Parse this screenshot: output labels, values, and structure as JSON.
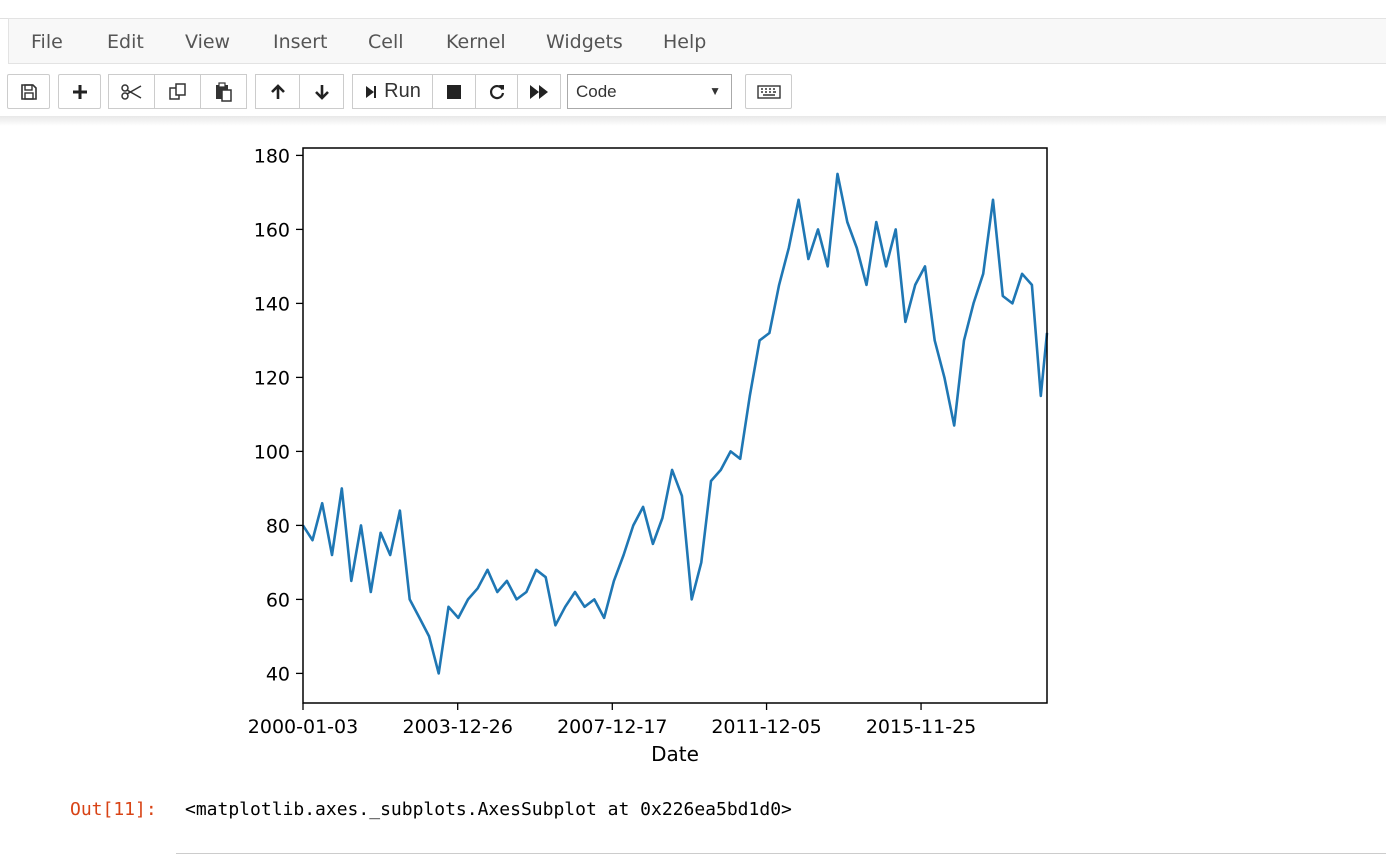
{
  "menu": {
    "items": [
      "File",
      "Edit",
      "View",
      "Insert",
      "Cell",
      "Kernel",
      "Widgets",
      "Help"
    ]
  },
  "toolbar": {
    "icons": [
      "save-icon",
      "plus-icon",
      "cut-icon",
      "copy-icon",
      "paste-icon",
      "arrow-up-icon",
      "arrow-down-icon",
      "run-icon",
      "stop-icon",
      "restart-icon",
      "fast-forward-icon",
      "keyboard-icon"
    ],
    "run_label": "Run",
    "cell_type": "Code"
  },
  "output": {
    "prompt": "Out[11]:",
    "text": "<matplotlib.axes._subplots.AxesSubplot at 0x226ea5bd1d0>"
  },
  "chart_data": {
    "type": "line",
    "title": "",
    "xlabel": "Date",
    "ylabel": "",
    "x_ticks": [
      "2000-01-03",
      "2003-12-26",
      "2007-12-17",
      "2011-12-05",
      "2015-11-25"
    ],
    "y_ticks": [
      40,
      60,
      80,
      100,
      120,
      140,
      160,
      180
    ],
    "xlim": [
      "2000-01-03",
      "2019-02-20"
    ],
    "ylim": [
      32,
      182
    ],
    "grid": false,
    "color": "#1f77b4",
    "series": [
      {
        "x": [
          "2000-01-03",
          "2000-04-01",
          "2000-07-01",
          "2000-10-01",
          "2001-01-01",
          "2001-04-01",
          "2001-07-01",
          "2001-10-01",
          "2002-01-01",
          "2002-04-01",
          "2002-07-01",
          "2002-10-01",
          "2003-01-01",
          "2003-04-01",
          "2003-07-01",
          "2003-10-01",
          "2004-01-01",
          "2004-04-01",
          "2004-07-01",
          "2004-10-01",
          "2005-01-01",
          "2005-04-01",
          "2005-07-01",
          "2005-10-01",
          "2006-01-01",
          "2006-04-01",
          "2006-07-01",
          "2006-10-01",
          "2007-01-01",
          "2007-04-01",
          "2007-07-01",
          "2007-10-01",
          "2008-01-01",
          "2008-04-01",
          "2008-07-01",
          "2008-10-01",
          "2009-01-01",
          "2009-04-01",
          "2009-07-01",
          "2009-10-01",
          "2010-01-01",
          "2010-04-01",
          "2010-07-01",
          "2010-10-01",
          "2011-01-01",
          "2011-04-01",
          "2011-07-01",
          "2011-10-01",
          "2012-01-01",
          "2012-04-01",
          "2012-07-01",
          "2012-10-01",
          "2013-01-01",
          "2013-04-01",
          "2013-07-01",
          "2013-10-01",
          "2014-01-01",
          "2014-04-01",
          "2014-07-01",
          "2014-10-01",
          "2015-01-01",
          "2015-04-01",
          "2015-07-01",
          "2015-10-01",
          "2016-01-01",
          "2016-04-01",
          "2016-07-01",
          "2016-10-01",
          "2017-01-01",
          "2017-04-01",
          "2017-07-01",
          "2017-10-01",
          "2018-01-01",
          "2018-04-01",
          "2018-07-01",
          "2018-10-01",
          "2018-12-24",
          "2019-02-20"
        ],
        "values": [
          80,
          76,
          86,
          72,
          90,
          65,
          80,
          62,
          78,
          72,
          84,
          60,
          55,
          50,
          40,
          58,
          55,
          60,
          63,
          68,
          62,
          65,
          60,
          62,
          68,
          66,
          53,
          58,
          62,
          58,
          60,
          55,
          65,
          72,
          80,
          85,
          75,
          82,
          95,
          88,
          60,
          70,
          92,
          95,
          100,
          98,
          115,
          130,
          132,
          145,
          155,
          168,
          152,
          160,
          150,
          175,
          162,
          155,
          145,
          162,
          150,
          160,
          135,
          145,
          150,
          130,
          120,
          107,
          130,
          140,
          148,
          168,
          142,
          140,
          148,
          145,
          115,
          132
        ]
      }
    ]
  }
}
